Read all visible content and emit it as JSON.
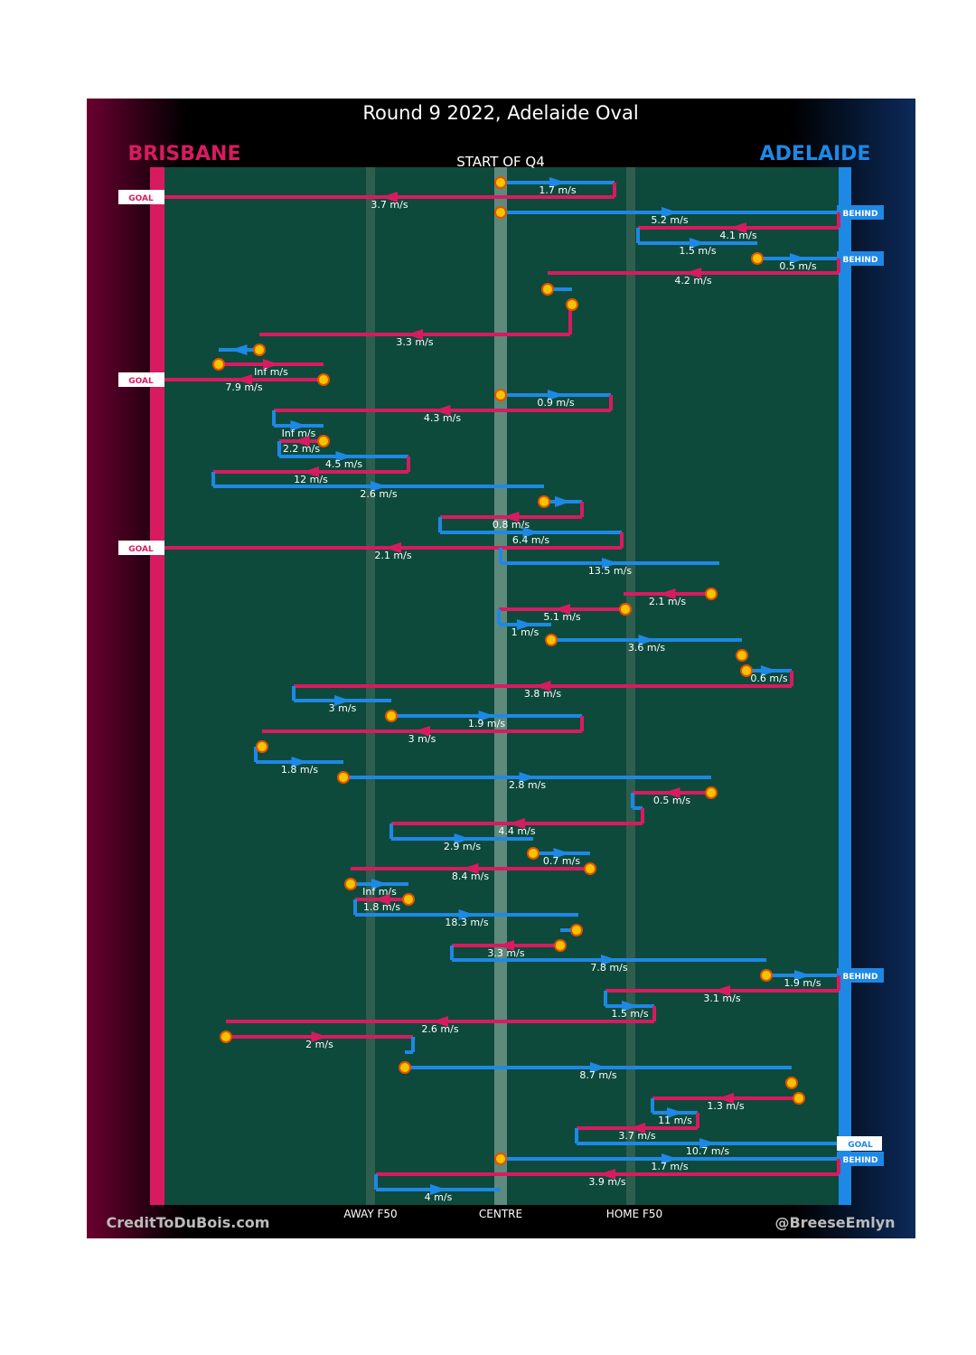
{
  "header": {
    "title": "Round 9 2022, Adelaide Oval",
    "home_team": "BRISBANE",
    "away_team": "ADELAIDE",
    "period": "START OF Q4"
  },
  "zones": [
    "AWAY F50",
    "CENTRE",
    "HOME F50"
  ],
  "footer": {
    "left": "CreditToDuBois.com",
    "right": "@BreeseEmlyn"
  },
  "speeds": [
    "1.7 m/s",
    "3.7 m/s",
    "5.2 m/s",
    "4.1 m/s",
    "1.5 m/s",
    "0.5 m/s",
    "4.2 m/s",
    "3.3 m/s",
    "Inf m/s",
    "7.9 m/s",
    "0.9 m/s",
    "4.3 m/s",
    "Inf m/s",
    "2.2 m/s",
    "4.5 m/s",
    "12 m/s",
    "2.6 m/s",
    "0.8 m/s",
    "6.4 m/s",
    "2.1 m/s",
    "13.5 m/s",
    "2.1 m/s",
    "5.1 m/s",
    "1 m/s",
    "3.6 m/s",
    "0.6 m/s",
    "3.8 m/s",
    "3 m/s",
    "1.9 m/s",
    "3 m/s",
    "1.8 m/s",
    "2.8 m/s",
    "0.5 m/s",
    "4.4 m/s",
    "2.9 m/s",
    "0.7 m/s",
    "8.4 m/s",
    "Inf m/s",
    "1.8 m/s",
    "18.3 m/s",
    "3.3 m/s",
    "7.8 m/s",
    "1.9 m/s",
    "3.1 m/s",
    "1.5 m/s",
    "2.6 m/s",
    "2 m/s",
    "8.7 m/s",
    "1.3 m/s",
    "11 m/s",
    "3.7 m/s",
    "10.7 m/s",
    "1.7 m/s",
    "3.9 m/s",
    "4 m/s"
  ],
  "outcomes": [
    "GOAL",
    "BEHIND",
    "BEHIND",
    "GOAL",
    "GOAL",
    "BEHIND",
    "GOAL",
    "BEHIND"
  ]
}
